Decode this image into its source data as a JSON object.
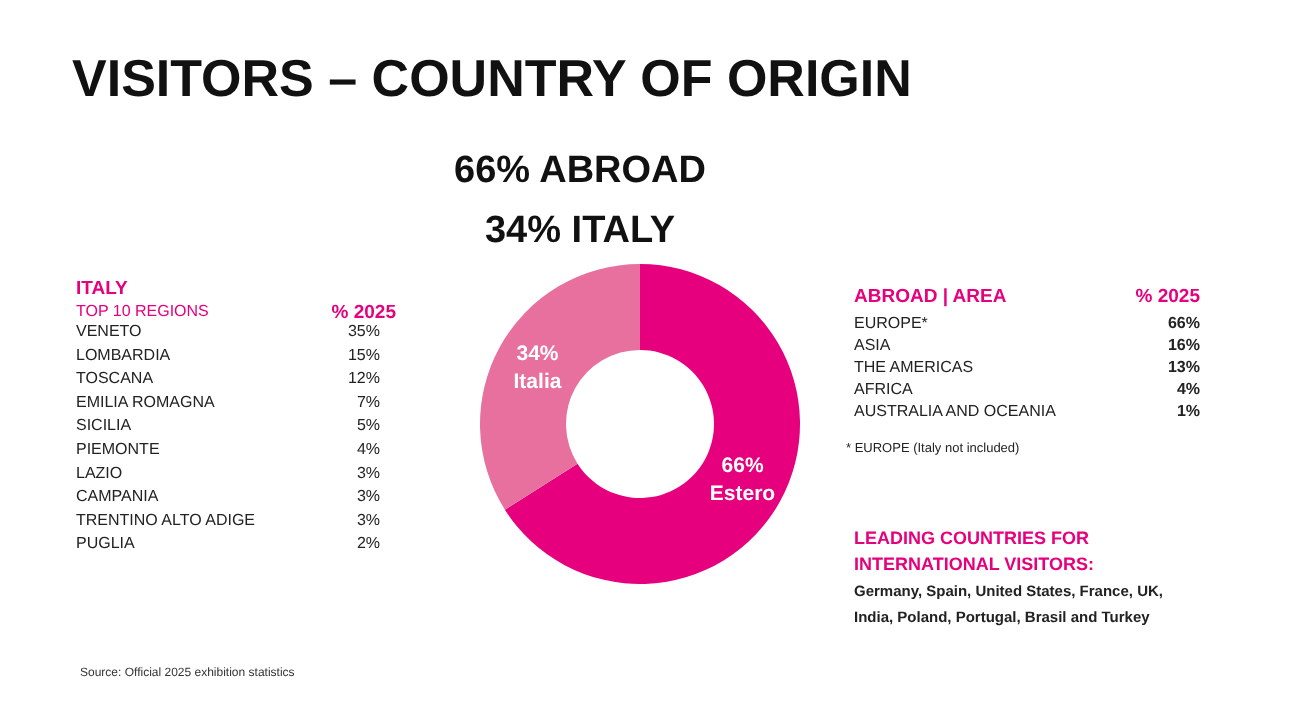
{
  "chart_data": {
    "type": "donut",
    "title": "VISITORS – COUNTRY OF ORIGIN",
    "subtitle": "66% ABROAD\n34% ITALY",
    "categories": [
      "Estero",
      "Italia"
    ],
    "values": [
      66,
      34
    ],
    "colors": [
      "#e6007e",
      "#e8709e"
    ],
    "value_labels": [
      "66%",
      "34%"
    ],
    "annotations": [
      "ITALY",
      "TOP 10 REGIONS",
      "% 2025",
      "VENETO",
      "35%",
      "LOMBARDIA",
      "15%",
      "TOSCANA",
      "12%",
      "EMILIA ROMAGNA",
      "7%",
      "SICILIA",
      "5%",
      "PIEMONTE",
      "4%",
      "LAZIO",
      "3%",
      "CAMPANIA",
      "3%",
      "TRENTINO ALTO ADIGE",
      "3%",
      "PUGLIA",
      "2%",
      "ABROAD | AREA",
      "% 2025",
      "EUROPE*",
      "66%",
      "ASIA",
      "16%",
      "THE AMERICAS",
      "13%",
      "AFRICA",
      "4%",
      "AUSTRALIA AND OCEANIA",
      "1%",
      "* EUROPE (Italy not included)",
      "LEADING COUNTRIES FOR",
      "INTERNATIONAL VISITORS:",
      "Germany, Spain, United States, France, UK,",
      "India, Poland, Portugal, Brasil and Turkey",
      "Source: Official 2025 exhibition statistics"
    ]
  }
}
